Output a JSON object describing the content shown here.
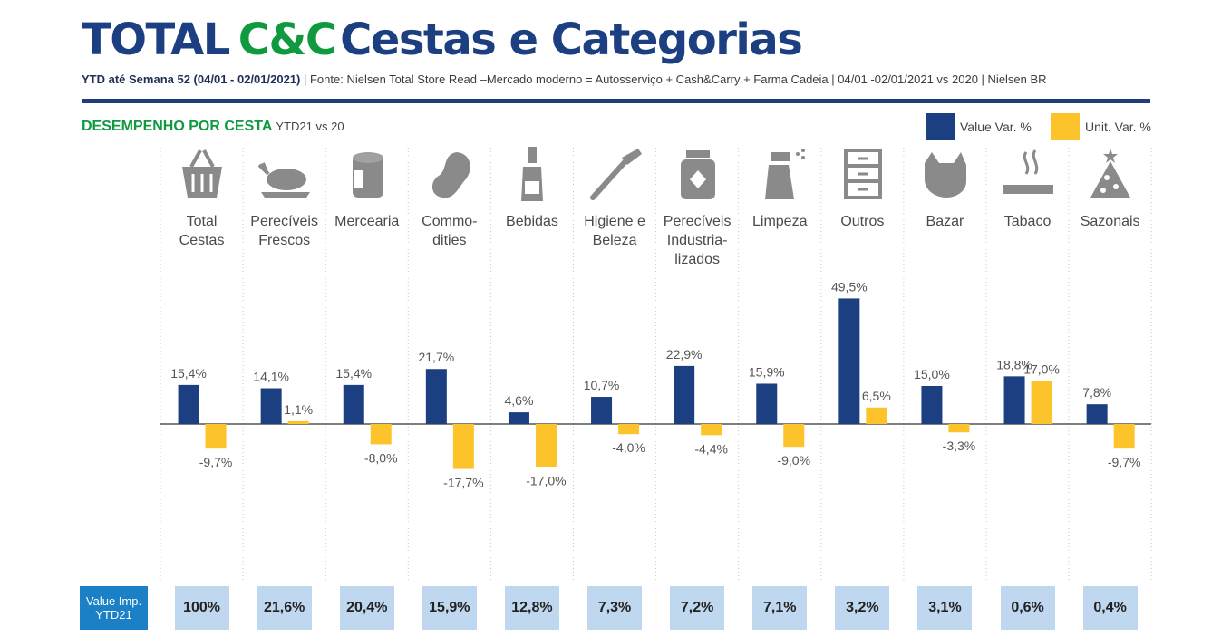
{
  "header": {
    "title_part1": "TOTAL",
    "title_part2": "C&C",
    "title_part3": "Cestas e Categorias",
    "subtitle_bold": "YTD até Semana 52 (04/01 - 02/01/2021)",
    "subtitle_rest": " | Fonte: Nielsen Total Store Read –Mercado moderno = Autosserviço + Cash&Carry + Farma Cadeia | 04/01 -02/01/2021 vs 2020 | Nielsen BR"
  },
  "section": {
    "title": "DESEMPENHO POR CESTA",
    "period": "YTD21 vs 20"
  },
  "colors": {
    "value": "#1b3f80",
    "unit": "#fcc32b",
    "green": "#0f9a3f",
    "icon_gray": "#8a8a8a"
  },
  "chart_data": {
    "type": "bar",
    "categories": [
      "Total\nCestas",
      "Perecíveis\nFrescos",
      "Mercearia",
      "Commo-\ndities",
      "Bebidas",
      "Higiene e\nBeleza",
      "Perecíveis\nIndustria-\nlizados",
      "Limpeza",
      "Outros",
      "Bazar",
      "Tabaco",
      "Sazonais"
    ],
    "icons": [
      "basket-icon",
      "chicken-icon",
      "can-icon",
      "bean-icon",
      "bottle-icon",
      "toothbrush-icon",
      "jar-icon",
      "spray-icon",
      "drawers-icon",
      "dog-icon",
      "cigarette-icon",
      "tree-icon"
    ],
    "series": [
      {
        "name": "Value Var. %",
        "values": [
          15.4,
          14.1,
          15.4,
          21.7,
          4.6,
          10.7,
          22.9,
          15.9,
          49.5,
          15.0,
          18.8,
          7.8
        ],
        "labels": [
          "15,4%",
          "14,1%",
          "15,4%",
          "21,7%",
          "4,6%",
          "10,7%",
          "22,9%",
          "15,9%",
          "49,5%",
          "15,0%",
          "18,8%",
          "7,8%"
        ]
      },
      {
        "name": "Unit. Var. %",
        "values": [
          -9.7,
          1.1,
          -8.0,
          -17.7,
          -17.0,
          -4.0,
          -4.4,
          -9.0,
          6.5,
          -3.3,
          17.0,
          -9.7
        ],
        "labels": [
          "-9,7%",
          "1,1%",
          "-8,0%",
          "-17,7%",
          "-17,0%",
          "-4,0%",
          "-4,4%",
          "-9,0%",
          "6,5%",
          "-3,3%",
          "17,0%",
          "-9,7%"
        ]
      }
    ],
    "legend_position": "top-right"
  },
  "value_imp": {
    "label_line1": "Value Imp.",
    "label_line2": "YTD21",
    "values": [
      "100%",
      "21,6%",
      "20,4%",
      "15,9%",
      "12,8%",
      "7,3%",
      "7,2%",
      "7,1%",
      "3,2%",
      "3,1%",
      "0,6%",
      "0,4%"
    ]
  }
}
